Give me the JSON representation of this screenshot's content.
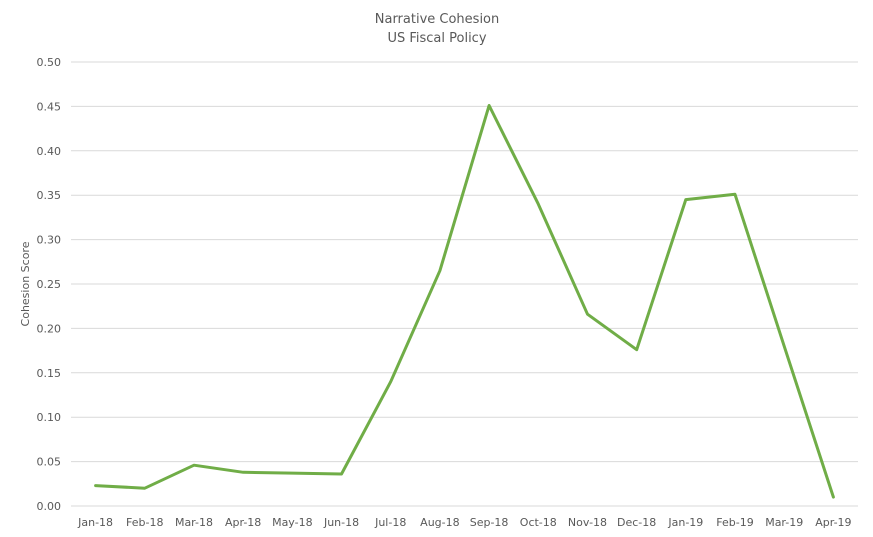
{
  "chart_data": {
    "type": "line",
    "title": "Narrative Cohesion",
    "subtitle": "US Fiscal Policy",
    "ylabel": "Cohesion Score",
    "xlabel": "",
    "ylim": [
      0,
      0.5
    ],
    "yticks": [
      "0.00",
      "0.05",
      "0.10",
      "0.15",
      "0.20",
      "0.25",
      "0.30",
      "0.35",
      "0.40",
      "0.45",
      "0.50"
    ],
    "yticks_values": [
      0,
      0.05,
      0.1,
      0.15,
      0.2,
      0.25,
      0.3,
      0.35,
      0.4,
      0.45,
      0.5
    ],
    "grid": true,
    "categories": [
      "Jan-18",
      "Feb-18",
      "Mar-18",
      "Apr-18",
      "May-18",
      "Jun-18",
      "Jul-18",
      "Aug-18",
      "Sep-18",
      "Oct-18",
      "Nov-18",
      "Dec-18",
      "Jan-19",
      "Feb-19",
      "Mar-19",
      "Apr-19"
    ],
    "series": [
      {
        "color": "#70ad47",
        "values": [
          0.023,
          0.02,
          0.046,
          0.038,
          0.037,
          0.036,
          0.14,
          0.265,
          0.451,
          0.34,
          0.216,
          0.176,
          0.345,
          0.351,
          0.18,
          0.01
        ]
      }
    ]
  }
}
